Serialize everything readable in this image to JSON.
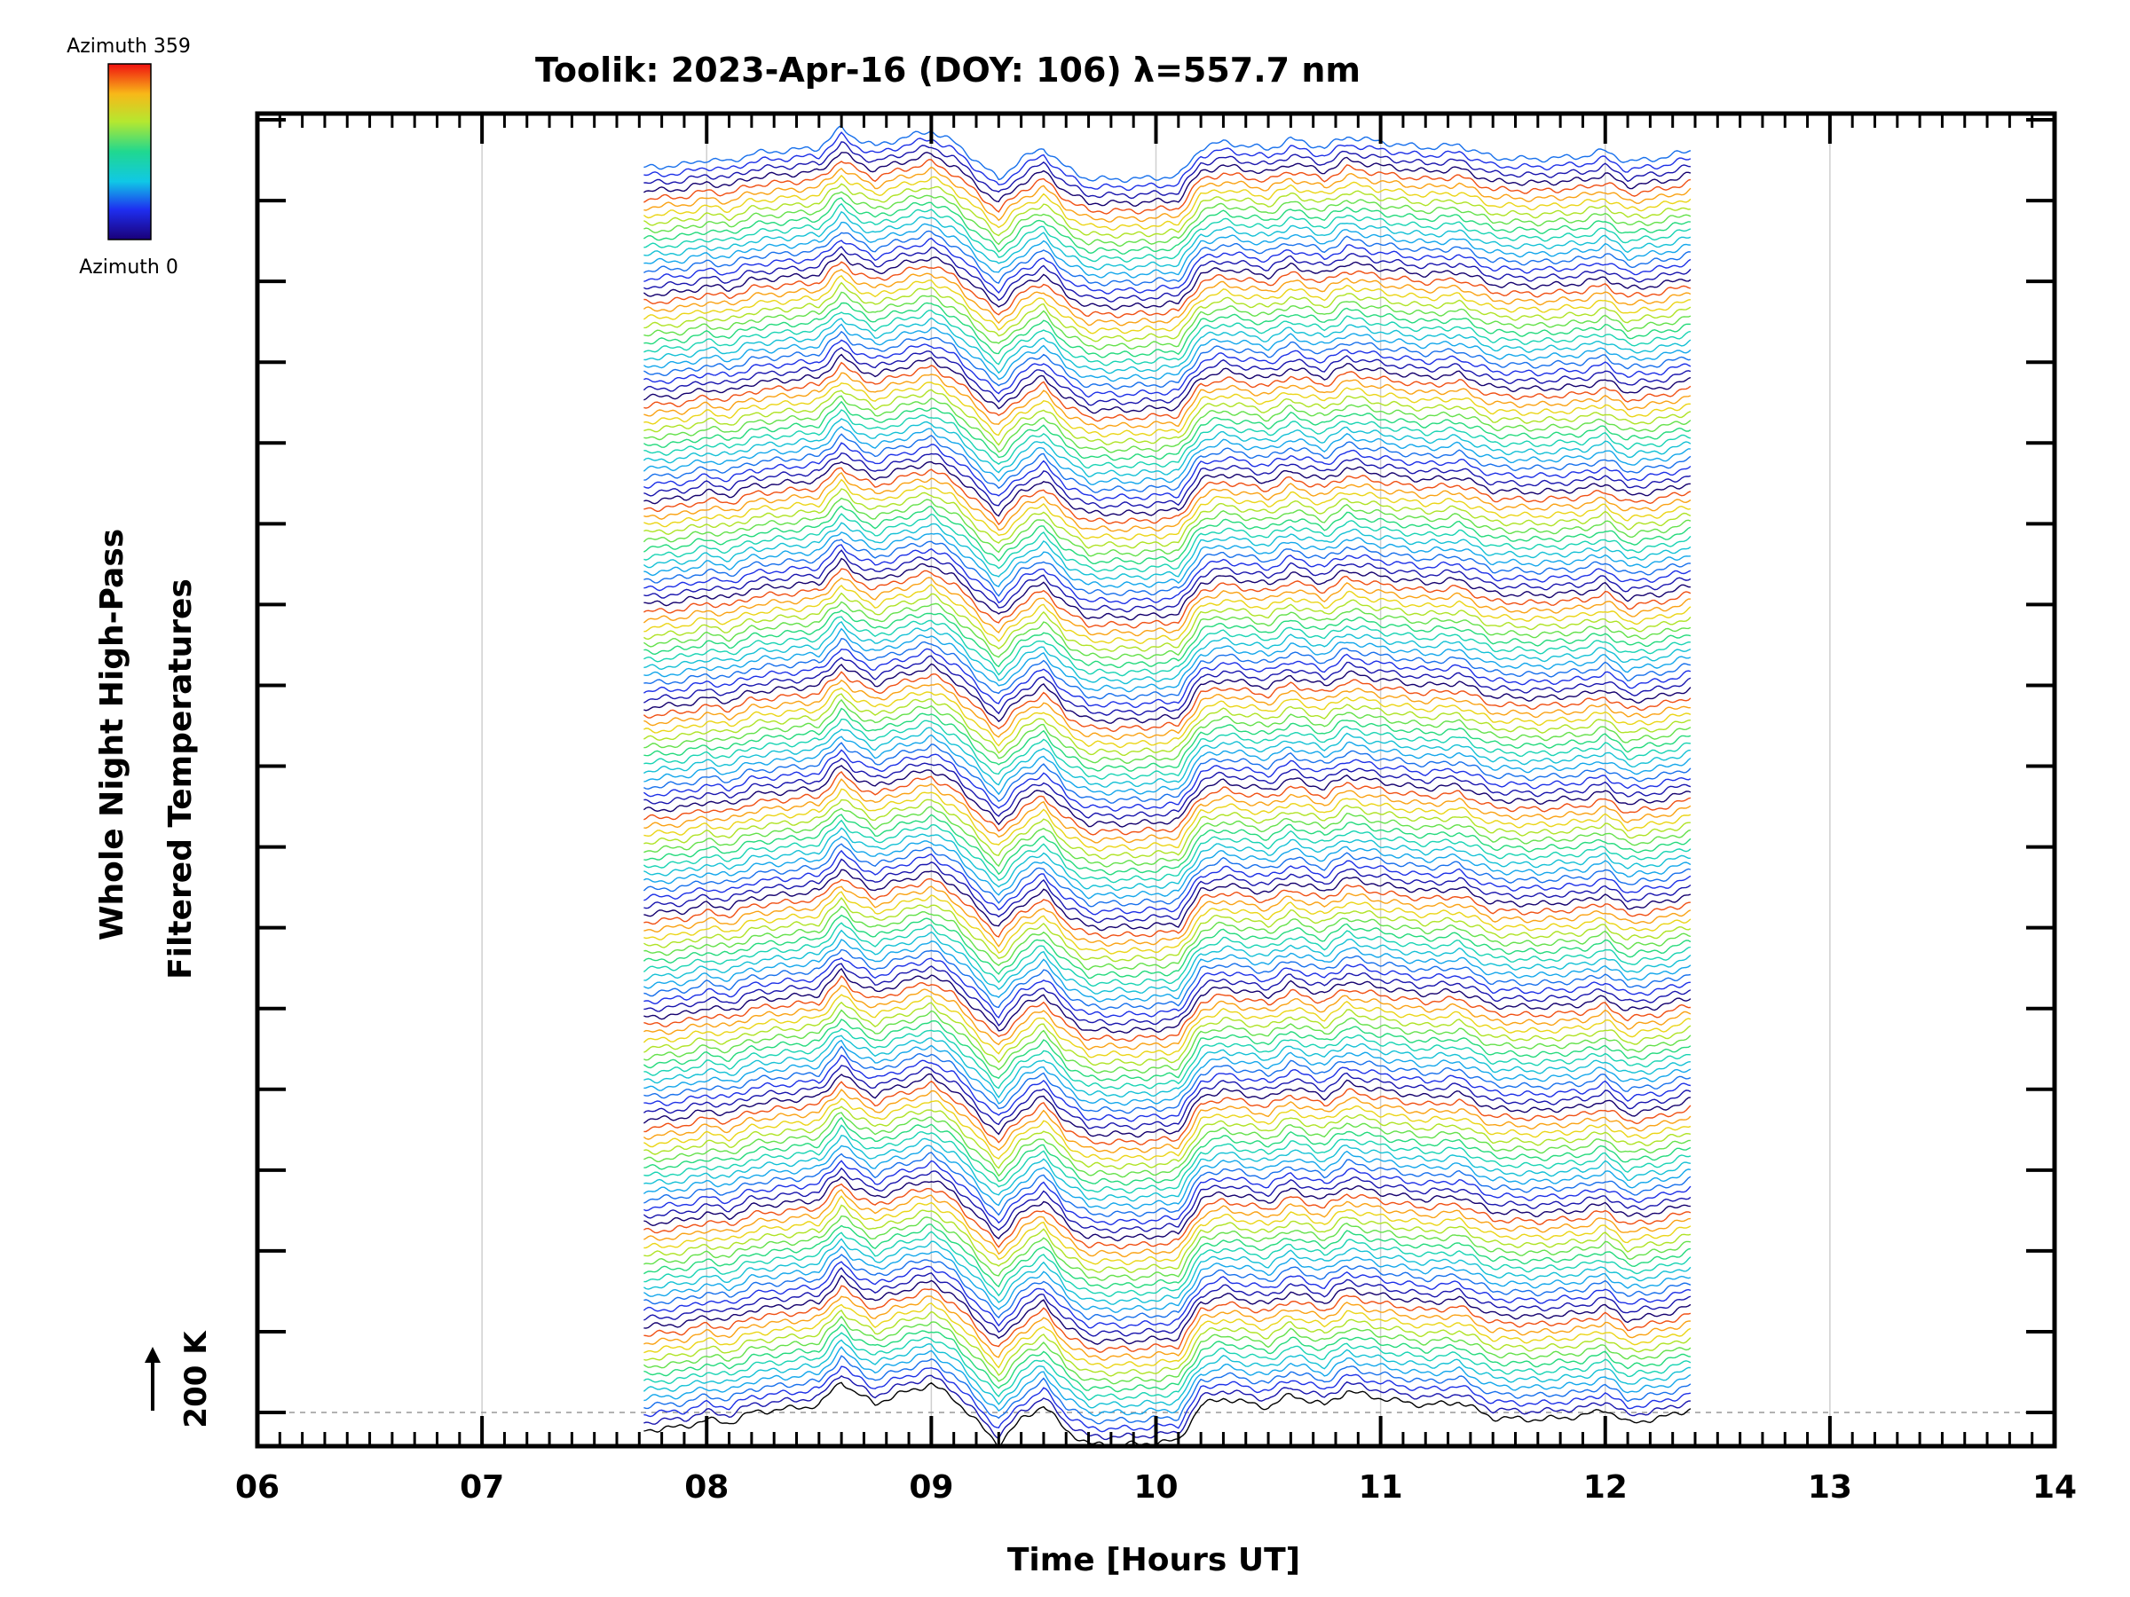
{
  "chart_data": {
    "type": "line",
    "title": "Toolik: 2023-Apr-16 (DOY: 106) λ=557.7 nm",
    "xlabel": "Time [Hours UT]",
    "ylabel_line1": "Whole Night High-Pass",
    "ylabel_line2": "Filtered Temperatures",
    "xlim": [
      6,
      14
    ],
    "x_ticks": [
      "06",
      "07",
      "08",
      "09",
      "10",
      "11",
      "12",
      "13",
      "14"
    ],
    "y_ticks_count": 17,
    "grid_x": true,
    "data_x_range": [
      7.72,
      12.38
    ],
    "scale_bar": {
      "label": "200 K"
    },
    "colorbar": {
      "top_label": "Azimuth 359",
      "bottom_label": "Azimuth 0",
      "colormap": "rainbow"
    },
    "series_count": 160,
    "series_description": "Stacked high-pass filtered temperature traces, one per azimuth, coloured by azimuth (rainbow 0-359), offset vertically",
    "common_profile": {
      "x": [
        7.72,
        7.9,
        8.0,
        8.1,
        8.2,
        8.35,
        8.5,
        8.6,
        8.65,
        8.75,
        8.85,
        9.0,
        9.1,
        9.2,
        9.3,
        9.4,
        9.5,
        9.6,
        9.7,
        9.9,
        10.1,
        10.2,
        10.3,
        10.5,
        10.6,
        10.75,
        10.85,
        11.0,
        11.2,
        11.35,
        11.5,
        11.7,
        11.9,
        12.0,
        12.1,
        12.25,
        12.38
      ],
      "y": [
        -10,
        -8,
        -4,
        -6,
        0,
        2,
        4,
        18,
        12,
        5,
        10,
        16,
        8,
        -5,
        -18,
        -4,
        4,
        -10,
        -18,
        -18,
        -16,
        4,
        8,
        3,
        10,
        4,
        12,
        8,
        4,
        6,
        -3,
        -4,
        -2,
        2,
        -6,
        -3,
        2
      ]
    }
  }
}
